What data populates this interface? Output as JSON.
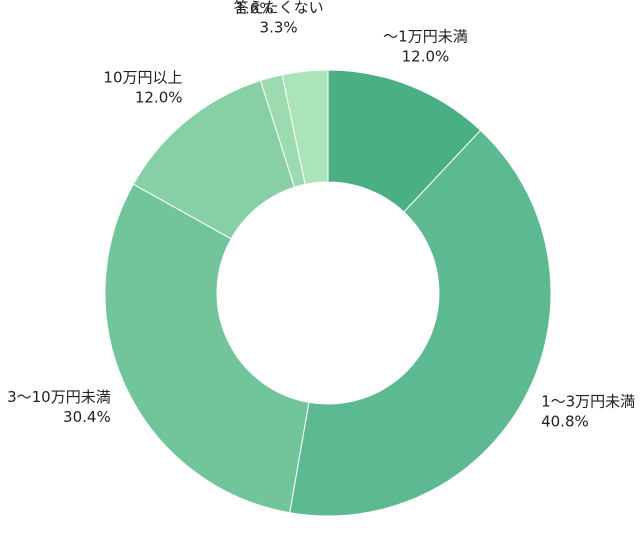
{
  "chart_data": {
    "type": "pie",
    "variant": "donut",
    "title": "",
    "legend": "none",
    "start_angle_deg": 0,
    "direction": "clockwise",
    "slices": [
      {
        "label": "～1万円未満",
        "value": 12.0,
        "value_label": "12.0%",
        "color": "#4aaf84"
      },
      {
        "label": "1～3万円未満",
        "value": 40.8,
        "value_label": "40.8%",
        "color": "#5cb991"
      },
      {
        "label": "3～10万円未満",
        "value": 30.4,
        "value_label": "30.4%",
        "color": "#72c49b"
      },
      {
        "label": "10万円以上",
        "value": 12.0,
        "value_label": "12.0%",
        "color": "#87cfa5"
      },
      {
        "label": "非公開",
        "value": 1.6,
        "value_label": "1.6%",
        "color": "#9cdab0"
      },
      {
        "label": "答えたくない",
        "value": 3.3,
        "value_label": "3.3%",
        "color": "#aae4b8"
      }
    ]
  }
}
